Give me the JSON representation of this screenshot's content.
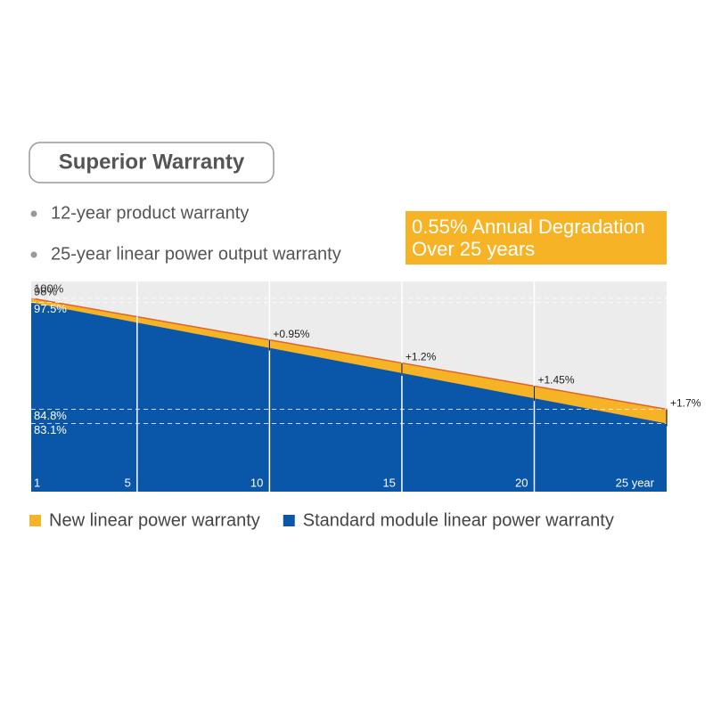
{
  "header": {
    "title": "Superior Warranty",
    "bullets": [
      "12-year product warranty",
      "25-year linear power output warranty"
    ],
    "badge": [
      "0.55% Annual Degradation",
      "Over 25 years"
    ]
  },
  "chart_data": {
    "type": "area",
    "x": [
      1,
      5,
      10,
      15,
      20,
      25
    ],
    "series": [
      {
        "name": "New linear power warranty",
        "color": "#f5b325",
        "values": [
          98,
          95.8,
          93.05,
          90.3,
          87.55,
          84.8
        ]
      },
      {
        "name": "Standard module linear power warranty",
        "color": "#0a56a8",
        "values": [
          97.5,
          95.1,
          92.1,
          89.1,
          86.1,
          83.1
        ]
      }
    ],
    "xlim": [
      1,
      25
    ],
    "xticks": [
      1,
      5,
      10,
      15,
      20,
      {
        "value": 25,
        "label": "25 year"
      }
    ],
    "ylim": [
      75,
      100
    ],
    "yticks": [
      {
        "value": 100,
        "label": "100%"
      },
      {
        "value": 98,
        "label": "98%"
      },
      {
        "value": 97.5,
        "label": "97.5%"
      },
      {
        "value": 84.8,
        "label": "84.8%"
      },
      {
        "value": 83.1,
        "label": "83.1%"
      }
    ],
    "differences": {
      "x": [
        10,
        15,
        20,
        25
      ],
      "values": [
        0.95,
        1.2,
        1.45,
        1.7
      ],
      "value_labels": [
        "+0.95%",
        "+1.2%",
        "+1.45%",
        "+1.7%"
      ]
    },
    "grid": true,
    "legend": "bottom"
  }
}
